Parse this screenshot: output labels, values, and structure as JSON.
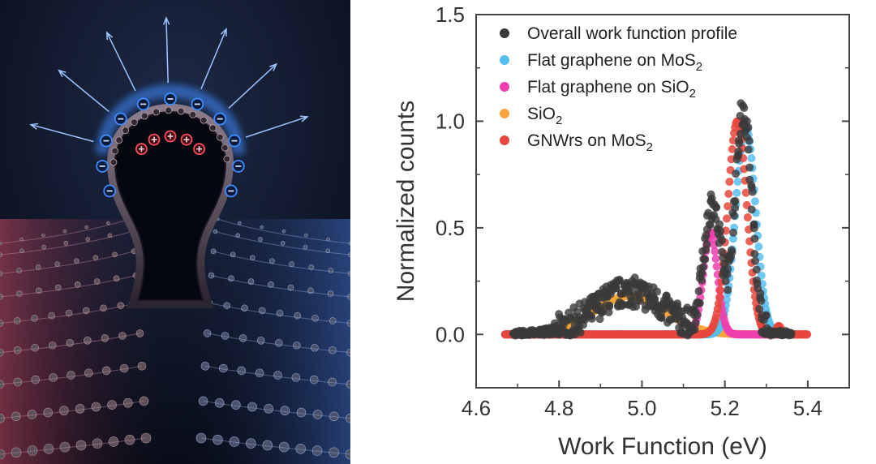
{
  "illustration": {
    "background_color": "#0d1120",
    "left_glow_color": "#c84c66",
    "right_glow_color": "#3f6bc4",
    "negative_charge_color": "#3f8dff",
    "positive_charge_color": "#ff4d5e",
    "negative_sign": "⊖",
    "positive_sign": "⊕",
    "negative_charge_count": 11,
    "positive_charge_count": 5,
    "field_arrow_count": 7
  },
  "chart_data": {
    "type": "scatter",
    "xlabel": "Work Function (eV)",
    "ylabel": "Normalized counts",
    "xlim": [
      4.6,
      5.5
    ],
    "ylim": [
      -0.25,
      1.5
    ],
    "xticks": [
      4.6,
      4.8,
      5.0,
      5.2,
      5.4
    ],
    "yticks": [
      0.0,
      0.5,
      1.0,
      1.5
    ],
    "xtick_labels": [
      "4.6",
      "4.8",
      "5.0",
      "5.2",
      "5.4"
    ],
    "ytick_labels": [
      "0.0",
      "0.5",
      "1.0",
      "1.5"
    ],
    "grid": false,
    "legend_position": "top-right",
    "series": [
      {
        "name": "Overall work function profile",
        "label_main": "Overall work function profile",
        "label_sub": "",
        "label_tail": "",
        "color": "#3a3a3a",
        "x_range": [
          4.69,
          5.36
        ],
        "components": [
          {
            "center": 4.97,
            "sigma": 0.085,
            "amplitude": 0.2
          },
          {
            "center": 5.17,
            "sigma": 0.02,
            "amplitude": 0.6
          },
          {
            "center": 5.245,
            "sigma": 0.02,
            "amplitude": 1.05
          }
        ],
        "noise": 0.05
      },
      {
        "name": "Flat graphene on MoS2",
        "label_main": "Flat graphene on MoS",
        "label_sub": "2",
        "label_tail": "",
        "color": "#56bff0",
        "x_range": [
          4.67,
          5.32
        ],
        "components": [
          {
            "center": 5.25,
            "sigma": 0.024,
            "amplitude": 0.98
          }
        ],
        "noise": 0
      },
      {
        "name": "Flat graphene on SiO2",
        "label_main": "Flat graphene on SiO",
        "label_sub": "2",
        "label_tail": "",
        "color": "#ee3fae",
        "x_range": [
          4.67,
          5.4
        ],
        "components": [
          {
            "center": 5.165,
            "sigma": 0.017,
            "amplitude": 0.48
          }
        ],
        "noise": 0
      },
      {
        "name": "SiO2",
        "label_main": "SiO",
        "label_sub": "2",
        "label_tail": "",
        "color": "#f7a43b",
        "x_range": [
          4.67,
          5.4
        ],
        "components": [
          {
            "center": 4.97,
            "sigma": 0.085,
            "amplitude": 0.18
          }
        ],
        "noise": 0
      },
      {
        "name": "GNWrs on MoS2",
        "label_main": "GNWrs on MoS",
        "label_sub": "2",
        "label_tail": "",
        "color": "#e8463c",
        "x_range": [
          4.67,
          5.4
        ],
        "components": [
          {
            "center": 5.23,
            "sigma": 0.023,
            "amplitude": 1.0
          },
          {
            "center": 5.33,
            "sigma": 0.006,
            "amplitude": 0.04
          }
        ],
        "noise": 0
      }
    ]
  }
}
